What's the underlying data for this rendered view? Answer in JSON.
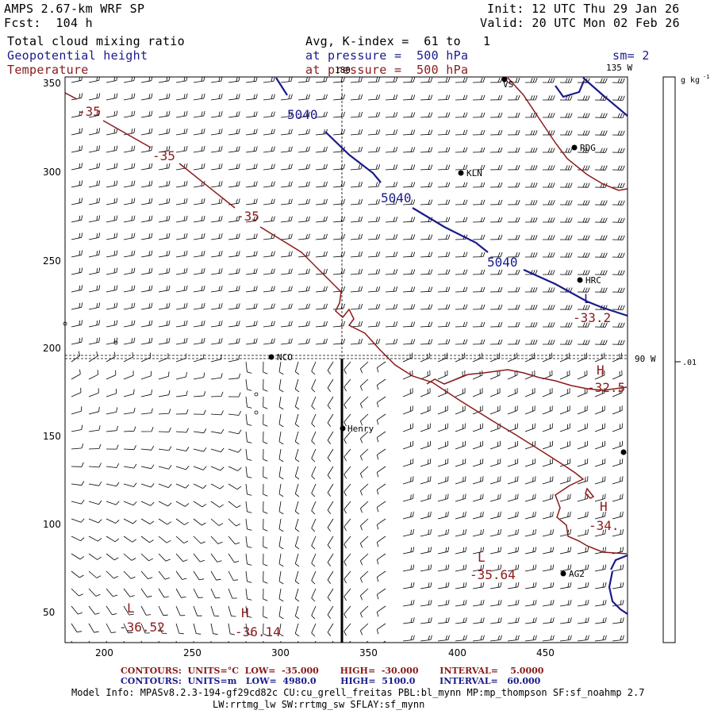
{
  "header": {
    "model": "AMPS 2.67-km WRF SP",
    "fcst": "Fcst:  104 h",
    "init": "Init: 12 UTC Thu 29 Jan 26",
    "valid": "Valid: 20 UTC Mon 02 Feb 26",
    "field1": "Total cloud mixing ratio",
    "field2": "Geopotential height",
    "field3": "Temperature",
    "avg": "Avg, K-index =  61 to   1",
    "pressure1": "at pressure =  500 hPa",
    "pressure2": "at pressure =  500 hPa",
    "sm": "sm= 2"
  },
  "map": {
    "xticks": [
      "200",
      "250",
      "300",
      "350",
      "400",
      "450"
    ],
    "yticks": [
      "350",
      "300",
      "250",
      "200",
      "150",
      "100",
      "50"
    ],
    "meridian_labels": {
      "top": "180",
      "top_right": "135 W",
      "right": "90 W"
    },
    "stations": [
      {
        "name": "VS"
      },
      {
        "name": "RDG"
      },
      {
        "name": "KLN"
      },
      {
        "name": "HRC"
      },
      {
        "name": "NCO"
      },
      {
        "name": "Henry"
      },
      {
        "name": "AG2"
      }
    ],
    "height_labels": [
      "5040",
      "5040",
      "5040"
    ],
    "temp_labels": [
      "-35",
      "-35",
      "-35"
    ],
    "extrema": [
      {
        "type": "L",
        "value": "-33.2"
      },
      {
        "type": "H",
        "value": "-32.5"
      },
      {
        "type": "H",
        "value": "-34."
      },
      {
        "type": "L",
        "value": "-35.64"
      },
      {
        "type": "L",
        "value": "-36.52"
      },
      {
        "type": "H",
        "value": "-36.14"
      }
    ],
    "colors": {
      "height": "#1a1a8c",
      "temperature": "#8b1a1a",
      "wind": "#000000"
    }
  },
  "colorbar": {
    "units": "g kg",
    "units_exp": "-1",
    "value": ".01"
  },
  "footer": {
    "line1a": "CONTOURS:  UNITS=°C  LOW=  -35.000       HIGH=  -30.000       INTERVAL=    5.0000",
    "line2a": "CONTOURS:  UNITS=m   LOW=  4980.0        HIGH=  5100.0        INTERVAL=   60.000",
    "model_info": "Model Info: MPASv8.2.3-194-gf29cd82c CU:cu_grell_freitas PBL:bl_mynn MP:mp_thompson SF:sf_noahmp 2.7",
    "model_info2": "LW:rrtmg_lw SW:rrtmg_sw SFLAY:sf_mynn"
  }
}
